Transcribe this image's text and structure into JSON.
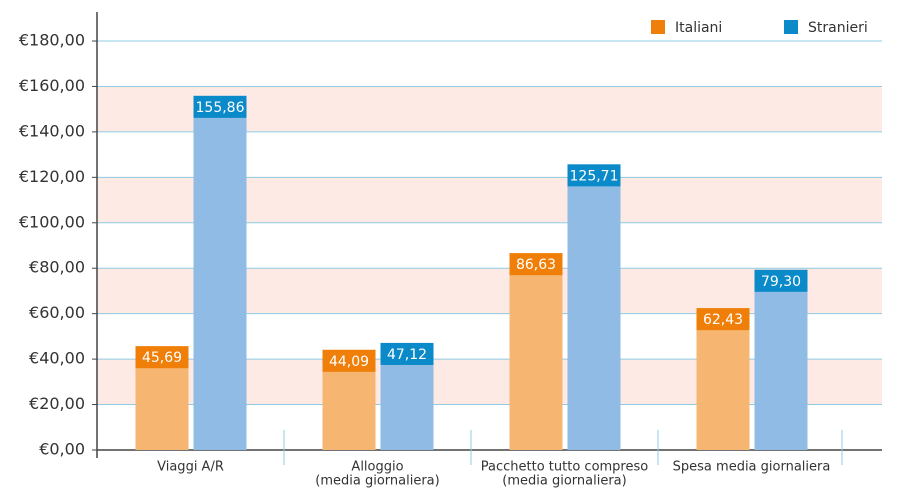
{
  "chart_data": {
    "type": "bar",
    "categories": [
      [
        "Viaggi A/R"
      ],
      [
        "Alloggio",
        "(media giornaliera)"
      ],
      [
        "Pacchetto tutto compreso",
        "(media giornaliera)"
      ],
      [
        "Spesa media giornaliera"
      ]
    ],
    "series": [
      {
        "name": "Italiani",
        "color": "#f07f09",
        "body_color": "#f6b571",
        "values": [
          45.69,
          44.09,
          86.63,
          62.43
        ],
        "value_labels": [
          "45,69",
          "44,09",
          "86,63",
          "62,43"
        ]
      },
      {
        "name": "Stranieri",
        "color": "#0a8ac8",
        "body_color": "#8fbbe5",
        "values": [
          155.86,
          47.12,
          125.71,
          79.3
        ],
        "value_labels": [
          "155,86",
          "47,12",
          "125,71",
          "79,30"
        ]
      }
    ],
    "ylim": [
      0,
      180
    ],
    "yticks": [
      {
        "value": 0,
        "label": "€0,00"
      },
      {
        "value": 20,
        "label": "€20,00"
      },
      {
        "value": 40,
        "label": "€40,00"
      },
      {
        "value": 60,
        "label": "€60,00"
      },
      {
        "value": 80,
        "label": "€80,00"
      },
      {
        "value": 100,
        "label": "€100,00"
      },
      {
        "value": 120,
        "label": "€120,00"
      },
      {
        "value": 140,
        "label": "€140,00"
      },
      {
        "value": 160,
        "label": "€160,00"
      },
      {
        "value": 180,
        "label": "€180,00"
      }
    ],
    "grid": true,
    "legend": "top-right"
  }
}
